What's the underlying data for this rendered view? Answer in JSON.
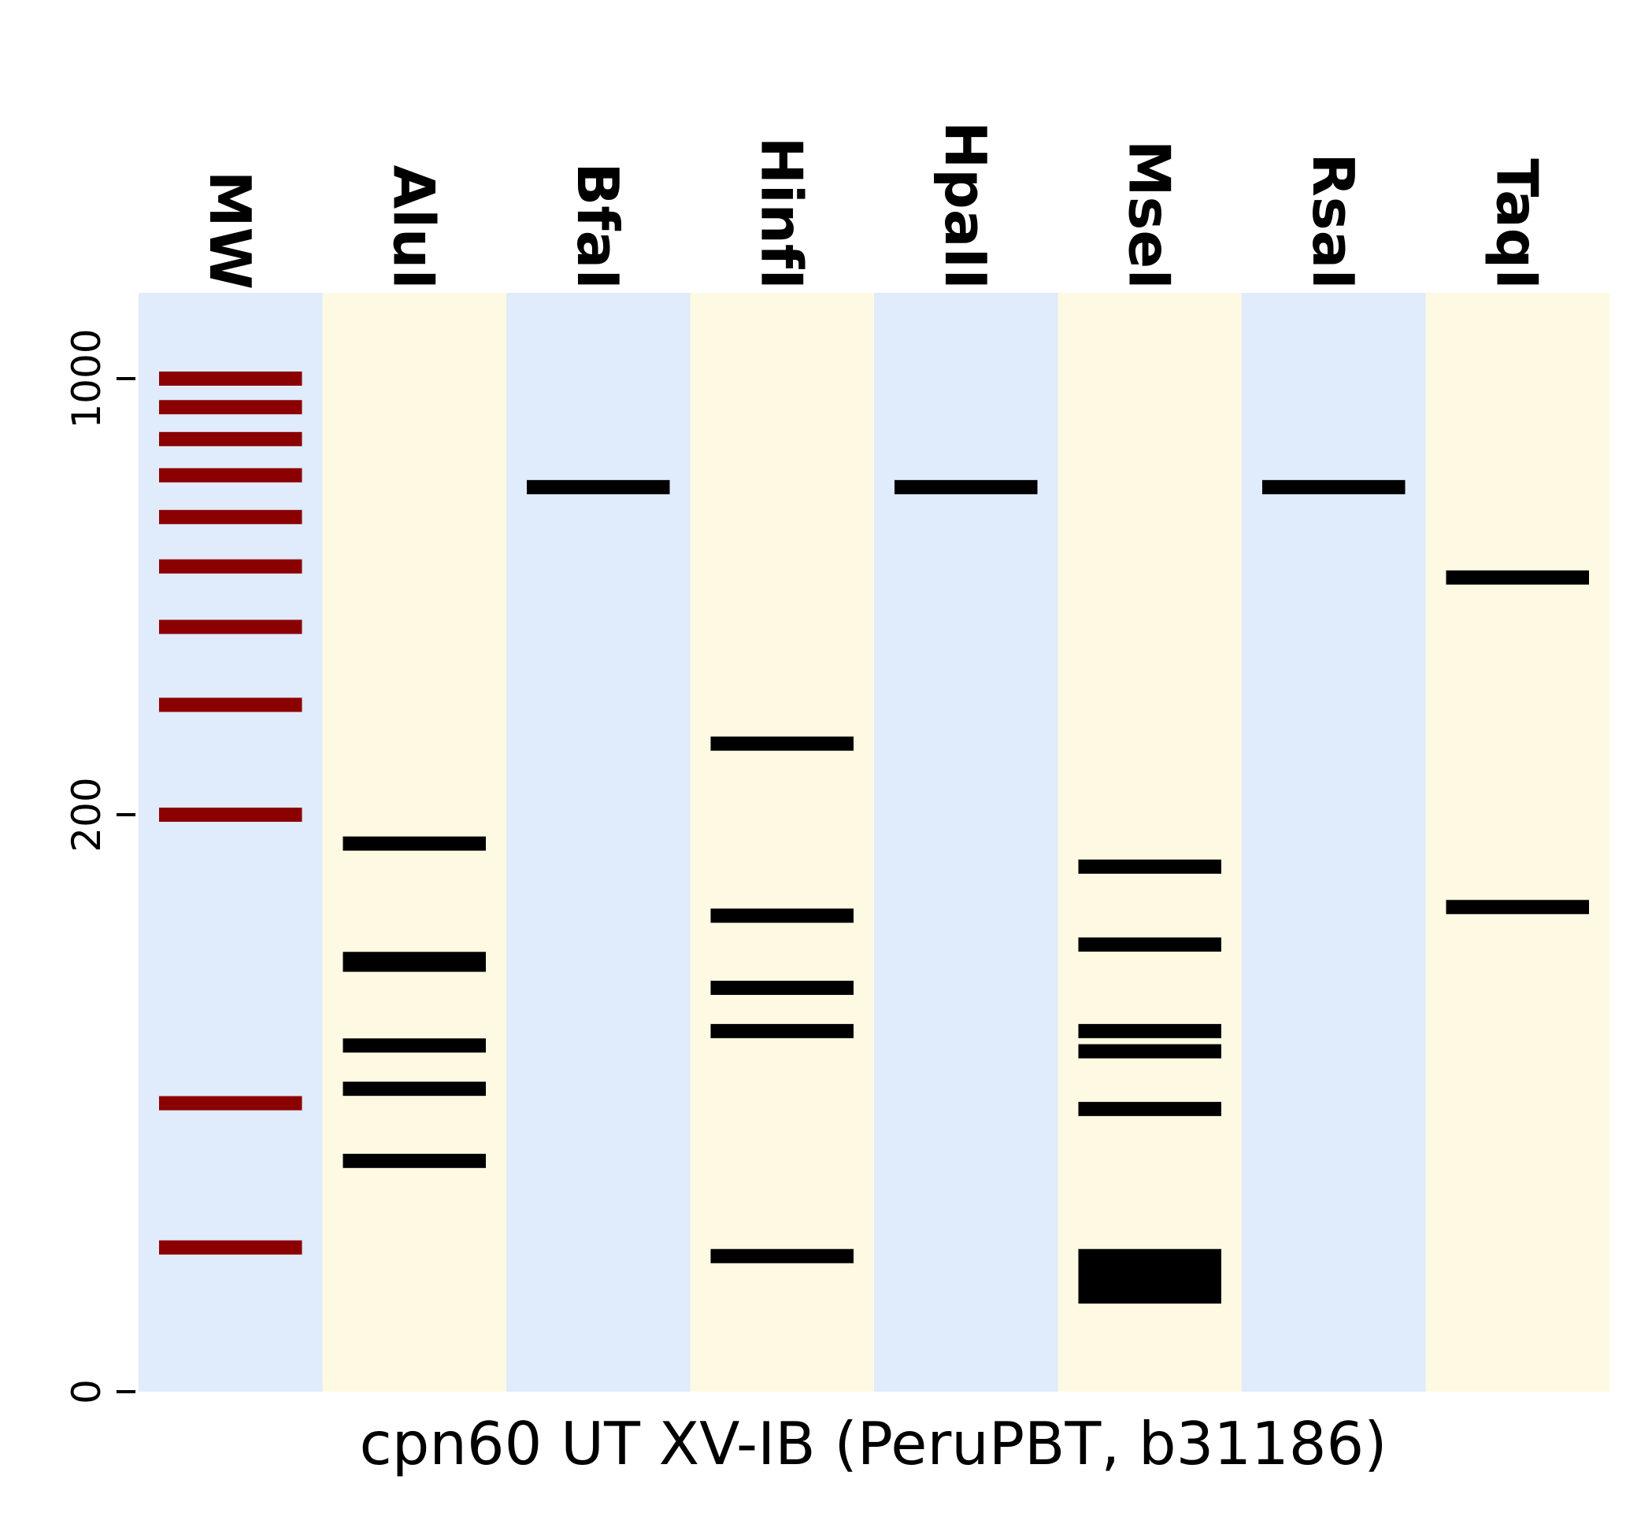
{
  "chart_data": {
    "type": "gel",
    "xlabel": "cpn60 UT XV-IB (PeruPBT, b31186)",
    "ylabel": "",
    "y_axis_ticks": [
      0,
      200,
      1000
    ],
    "lane_background_colors": [
      "#e0ebfb",
      "#fdf9e3"
    ],
    "ladder_band_color": "#8b0000",
    "sample_band_color": "#000000",
    "lanes": [
      {
        "name": "MW",
        "is_ladder": true,
        "bands": [
          1000,
          900,
          800,
          700,
          600,
          500,
          400,
          300,
          200,
          100,
          50
        ]
      },
      {
        "name": "AluI",
        "bands": [
          190,
          150,
          148,
          120,
          105,
          80
        ]
      },
      {
        "name": "BfaI",
        "bands": [
          670
        ]
      },
      {
        "name": "HinfI",
        "bands": [
          260,
          165,
          140,
          125,
          47
        ]
      },
      {
        "name": "HpaII",
        "bands": [
          670
        ]
      },
      {
        "name": "MseI",
        "bands": [
          182,
          155,
          125,
          118,
          98,
          47,
          43,
          40,
          37,
          33
        ]
      },
      {
        "name": "RsaI",
        "bands": [
          670
        ]
      },
      {
        "name": "TaqI",
        "bands": [
          480,
          168
        ]
      }
    ]
  }
}
